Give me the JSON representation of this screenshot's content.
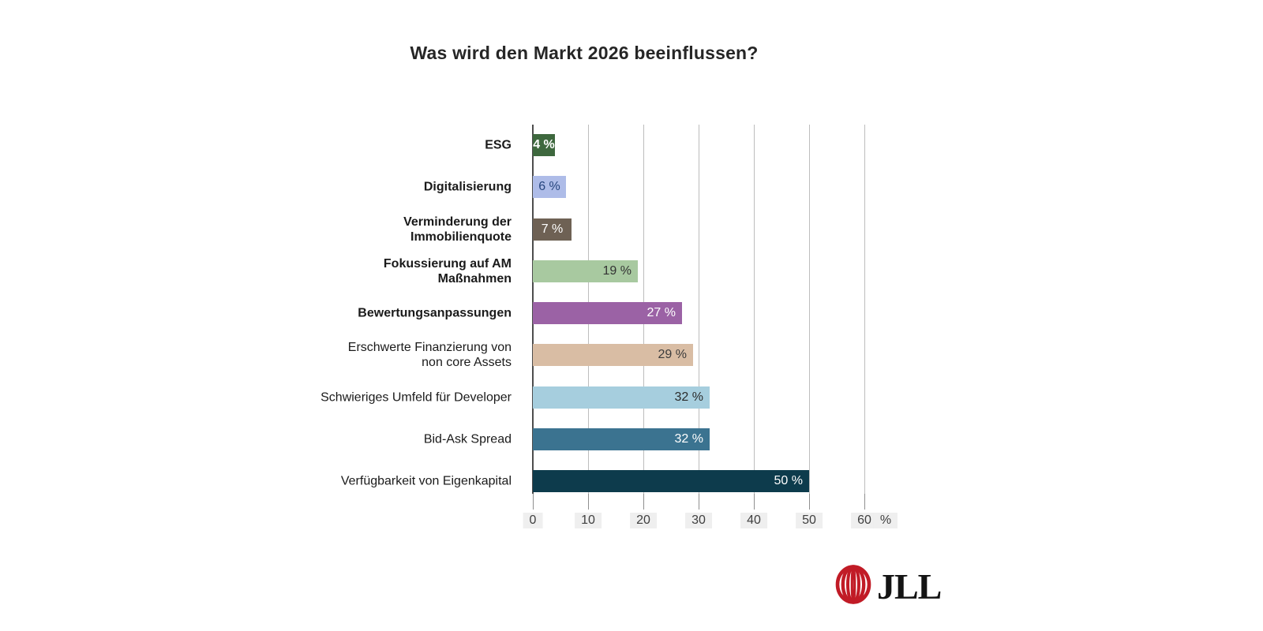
{
  "title": "Was wird den Markt 2026 beeinflussen?",
  "chart_data": {
    "type": "bar",
    "orientation": "horizontal",
    "title": "Was wird den Markt 2026 beeinflussen?",
    "categories": [
      "ESG",
      "Digitalisierung",
      "Verminderung der\nImmobilienquote",
      "Fokussierung auf AM\nMaßnahmen",
      "Bewertungsanpassungen",
      "Erschwerte Finanzierung von\nnon core Assets",
      "Schwieriges Umfeld für Developer",
      "Bid-Ask Spread",
      "Verfügbarkeit von Eigenkapital"
    ],
    "values": [
      4,
      6,
      7,
      19,
      27,
      29,
      32,
      32,
      50
    ],
    "value_labels": [
      "4 %",
      "6 %",
      "7 %",
      "19 %",
      "27 %",
      "29 %",
      "32 %",
      "32 %",
      "50 %"
    ],
    "xlim": [
      0,
      60
    ],
    "x_ticks": [
      0,
      10,
      20,
      30,
      40,
      50,
      60
    ],
    "x_unit_label": "%",
    "grid": true,
    "legend": false,
    "styles": {
      "bar_colors": [
        "#3E683E",
        "#AEBCE8",
        "#6E6154",
        "#A8C9A0",
        "#9B62A5",
        "#D9BDA4",
        "#A6CEDE",
        "#3B7390",
        "#0D3B4C"
      ],
      "value_colors": [
        "#FFFFFF",
        "#26457E",
        "#FFFFFF",
        "#333333",
        "#FFFFFF",
        "#3C3C3C",
        "#2B2B2B",
        "#FFFFFF",
        "#FFFFFF"
      ],
      "value_bold": [
        true,
        false,
        false,
        false,
        false,
        false,
        false,
        false,
        false
      ],
      "category_bold": [
        true,
        true,
        true,
        true,
        true,
        false,
        false,
        false,
        false
      ],
      "gridline_color": "#bdbdbd",
      "axis_color": "#4d4d4d",
      "tick_label_bg": "#efefef"
    }
  },
  "logo": {
    "name": "JLL",
    "text": "JLL",
    "mark_color": "#C11B26"
  }
}
